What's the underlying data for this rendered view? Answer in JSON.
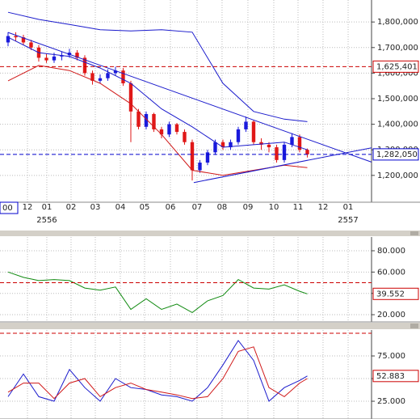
{
  "chart_data": [
    {
      "type": "candlestick",
      "xlim": [
        -1.05,
        47.37
      ],
      "xticks": [
        {
          "value": 2.53,
          "label": "12"
        },
        {
          "value": 5.05,
          "label": "01"
        },
        {
          "value": 8.21,
          "label": "02"
        },
        {
          "value": 11.37,
          "label": "03"
        },
        {
          "value": 14.63,
          "label": "04"
        },
        {
          "value": 17.79,
          "label": "05"
        },
        {
          "value": 21.16,
          "label": "06"
        },
        {
          "value": 24.63,
          "label": "07"
        },
        {
          "value": 27.89,
          "label": "08"
        },
        {
          "value": 31.26,
          "label": "09"
        },
        {
          "value": 34.63,
          "label": "10"
        },
        {
          "value": 37.79,
          "label": "11"
        },
        {
          "value": 41.05,
          "label": "12"
        },
        {
          "value": 44.32,
          "label": "01"
        }
      ],
      "year_ticks": [
        {
          "value": 5.05,
          "label": "2556"
        },
        {
          "value": 44.32,
          "label": "2557"
        }
      ],
      "ylim": [
        1095000,
        1886000
      ],
      "yticks": [
        {
          "value": 1200000,
          "label": "1,200,000"
        },
        {
          "value": 1300000,
          "label": "1,300,000"
        },
        {
          "value": 1400000,
          "label": "1,400,000"
        },
        {
          "value": 1500000,
          "label": "1,500,000"
        },
        {
          "value": 1600000,
          "label": "1,600,000"
        },
        {
          "value": 1700000,
          "label": "1,700,000"
        },
        {
          "value": 1800000,
          "label": "1,800,000"
        }
      ],
      "grid": true,
      "up_color": "#1a1adc",
      "down_color": "#e01818",
      "open": [
        1720000,
        1745000,
        1740000,
        1720000,
        1700000,
        1660000,
        1650000,
        1665000,
        1670000,
        1680000,
        1660000,
        1600000,
        1570000,
        1580000,
        1600000,
        1610000,
        1560000,
        1450000,
        1390000,
        1440000,
        1380000,
        1360000,
        1400000,
        1370000,
        1330000,
        1220000,
        1250000,
        1290000,
        1330000,
        1310000,
        1330000,
        1380000,
        1410000,
        1330000,
        1320000,
        1310000,
        1260000,
        1320000,
        1350000,
        1300000
      ],
      "high": [
        1760000,
        1760000,
        1750000,
        1730000,
        1710000,
        1675000,
        1680000,
        1685000,
        1695000,
        1690000,
        1670000,
        1610000,
        1595000,
        1615000,
        1625000,
        1620000,
        1570000,
        1460000,
        1450000,
        1445000,
        1390000,
        1410000,
        1405000,
        1380000,
        1340000,
        1260000,
        1300000,
        1340000,
        1340000,
        1340000,
        1390000,
        1430000,
        1415000,
        1345000,
        1330000,
        1320000,
        1330000,
        1365000,
        1360000,
        1305000
      ],
      "low": [
        1705000,
        1725000,
        1710000,
        1690000,
        1645000,
        1640000,
        1640000,
        1650000,
        1660000,
        1650000,
        1590000,
        1555000,
        1560000,
        1570000,
        1590000,
        1550000,
        1330000,
        1380000,
        1380000,
        1370000,
        1345000,
        1350000,
        1360000,
        1320000,
        1180000,
        1210000,
        1240000,
        1280000,
        1300000,
        1300000,
        1320000,
        1370000,
        1320000,
        1300000,
        1290000,
        1250000,
        1250000,
        1310000,
        1290000,
        1270000
      ],
      "close": [
        1745000,
        1740000,
        1720000,
        1700000,
        1660000,
        1650000,
        1665000,
        1670000,
        1680000,
        1660000,
        1600000,
        1570000,
        1580000,
        1600000,
        1610000,
        1560000,
        1450000,
        1390000,
        1440000,
        1380000,
        1360000,
        1400000,
        1370000,
        1330000,
        1220000,
        1250000,
        1290000,
        1330000,
        1310000,
        1330000,
        1380000,
        1410000,
        1330000,
        1320000,
        1310000,
        1260000,
        1320000,
        1350000,
        1300000,
        1282050
      ],
      "series": [
        {
          "color": "#1a1acc",
          "x": [
            0,
            4,
            8,
            12,
            16,
            20,
            24,
            28,
            32,
            36,
            39
          ],
          "values": [
            1838000,
            1810000,
            1790000,
            1770000,
            1765000,
            1770000,
            1760000,
            1560000,
            1450000,
            1420000,
            1410000
          ]
        },
        {
          "color": "#1a1acc",
          "x": [
            0,
            4,
            8,
            12,
            16,
            20,
            24,
            28,
            32,
            36,
            39
          ],
          "values": [
            1740000,
            1680000,
            1665000,
            1620000,
            1560000,
            1460000,
            1390000,
            1310000,
            1320000,
            1330000,
            1300000
          ]
        },
        {
          "color": "#d01818",
          "x": [
            0,
            4,
            8,
            12,
            16,
            20,
            24,
            28,
            32,
            36,
            39
          ],
          "values": [
            1570000,
            1630000,
            1610000,
            1560000,
            1480000,
            1360000,
            1220000,
            1200000,
            1220000,
            1240000,
            1230000
          ]
        },
        {
          "color": "#1a1acc",
          "x": [
            0,
            47.37
          ],
          "values": [
            1759000,
            1252000
          ]
        },
        {
          "color": "#1a1acc",
          "x": [
            24.2,
            47.37
          ],
          "values": [
            1172000,
            1308000
          ]
        }
      ],
      "reference_lines": [
        {
          "value": 1625401,
          "label": "1,625,401",
          "color": "#cc0000"
        },
        {
          "value": 1282050,
          "label": "1,282,050",
          "color": "#0000cc"
        }
      ],
      "cursor_label": "00"
    },
    {
      "type": "line",
      "xlim": [
        -1.05,
        47.37
      ],
      "ylim": [
        13.2,
        92.9
      ],
      "yticks": [
        {
          "value": 20,
          "label": "20.000"
        },
        {
          "value": 40,
          "label": "40.000"
        },
        {
          "value": 60,
          "label": "60.000"
        },
        {
          "value": 80,
          "label": "80.000"
        }
      ],
      "grid": true,
      "series": [
        {
          "color": "#108a10",
          "x": [
            0,
            2,
            4,
            6,
            8,
            10,
            12,
            14,
            16,
            18,
            20,
            22,
            24,
            26,
            28,
            30,
            32,
            34,
            36,
            38,
            39
          ],
          "values": [
            60,
            55,
            52,
            53,
            52,
            45,
            43,
            46,
            25,
            35,
            25,
            30,
            22,
            33,
            38,
            53,
            45,
            44,
            48,
            42,
            39.552
          ]
        }
      ],
      "reference_lines": [
        {
          "value": 50,
          "color": "#cc0000"
        }
      ],
      "last_value_color": "#cc0000"
    },
    {
      "type": "line",
      "xlim": [
        -1.05,
        47.37
      ],
      "ylim": [
        5.4,
        103.6
      ],
      "yticks": [
        {
          "value": 25,
          "label": "25.000"
        },
        {
          "value": 50,
          "label": "50.000"
        },
        {
          "value": 75,
          "label": "75.000"
        }
      ],
      "grid": true,
      "series": [
        {
          "color": "#1a1acc",
          "x": [
            0,
            2,
            4,
            6,
            8,
            10,
            12,
            14,
            16,
            18,
            20,
            22,
            24,
            26,
            28,
            30,
            32,
            34,
            36,
            38,
            39
          ],
          "values": [
            30,
            55,
            30,
            25,
            60,
            40,
            25,
            50,
            40,
            38,
            32,
            30,
            25,
            40,
            65,
            92,
            70,
            25,
            40,
            48,
            52.883
          ]
        },
        {
          "color": "#d01818",
          "x": [
            0,
            2,
            4,
            6,
            8,
            10,
            12,
            14,
            16,
            18,
            20,
            22,
            24,
            26,
            28,
            30,
            32,
            34,
            36,
            38,
            39
          ],
          "values": [
            35,
            45,
            45,
            28,
            45,
            50,
            30,
            40,
            45,
            38,
            35,
            32,
            28,
            30,
            50,
            80,
            85,
            40,
            30,
            45,
            50
          ]
        }
      ],
      "reference_lines": [
        {
          "value": 100,
          "color": "#cc0000"
        }
      ],
      "last_value_color": "#cc0000"
    }
  ]
}
